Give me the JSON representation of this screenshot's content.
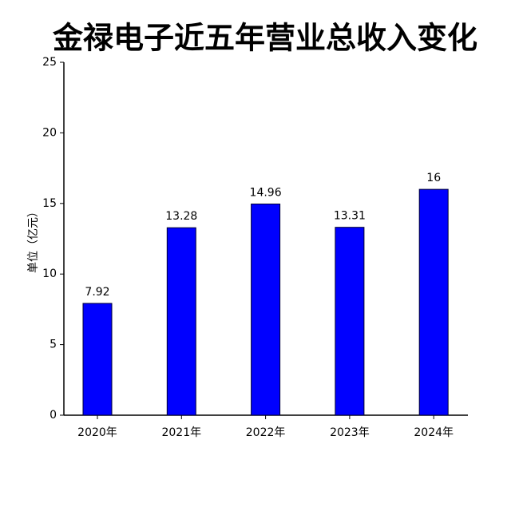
{
  "chart_data": {
    "type": "bar",
    "title": "金禄电子近五年营业总收入变化",
    "y_label": "单位（亿元）",
    "categories": [
      "2020年",
      "2021年",
      "2022年",
      "2023年",
      "2024年"
    ],
    "values": [
      7.92,
      13.28,
      14.96,
      13.31,
      16
    ],
    "color": "#0000ff",
    "ylim": [
      0,
      25
    ],
    "yticks": [
      0,
      5,
      10,
      15,
      20,
      25
    ],
    "grid": false
  }
}
